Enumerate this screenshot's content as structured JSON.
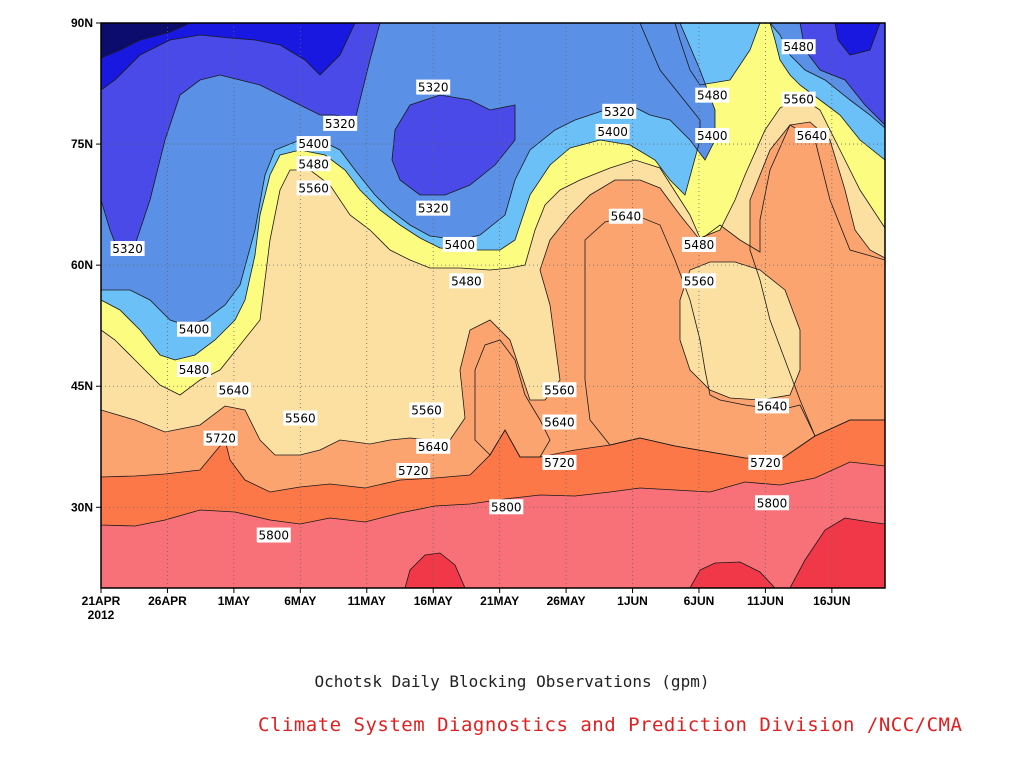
{
  "chart_data": {
    "type": "heatmap",
    "title": "Ochotsk Daily Blocking Observations (gpm)",
    "credit": "Climate System Diagnostics and Prediction Division /NCC/CMA",
    "x_tick_labels": [
      "21APR",
      "26APR",
      "1MAY",
      "6MAY",
      "11MAY",
      "16MAY",
      "21MAY",
      "26MAY",
      "1JUN",
      "6JUN",
      "11JUN",
      "16JUN"
    ],
    "x_start_year": "2012",
    "x_range_days": [
      0,
      59
    ],
    "y_tick_labels": [
      "30N",
      "45N",
      "60N",
      "75N",
      "90N"
    ],
    "y_tick_values": [
      30,
      45,
      60,
      75,
      90
    ],
    "ylim": [
      20,
      90
    ],
    "grid": "dotted",
    "contour_levels": [
      5240,
      5320,
      5400,
      5480,
      5560,
      5640,
      5720,
      5800,
      5880
    ],
    "fill_colors": [
      "#0c0c6e",
      "#1818e0",
      "#4a4ae8",
      "#5a90e6",
      "#6cc0f8",
      "#fcfc80",
      "#fce0a2",
      "#fca470",
      "#fc7848",
      "#f87078",
      "#f03848"
    ],
    "contour_labels": [
      {
        "text": "5320",
        "day": 2,
        "lat": 62
      },
      {
        "text": "5320",
        "day": 18,
        "lat": 77.5
      },
      {
        "text": "5320",
        "day": 25,
        "lat": 82
      },
      {
        "text": "5320",
        "day": 25,
        "lat": 67
      },
      {
        "text": "5320",
        "day": 39,
        "lat": 79
      },
      {
        "text": "5400",
        "day": 16,
        "lat": 75
      },
      {
        "text": "5400",
        "day": 7,
        "lat": 52
      },
      {
        "text": "5400",
        "day": 27,
        "lat": 62.5
      },
      {
        "text": "5400",
        "day": 38.5,
        "lat": 76.5
      },
      {
        "text": "5400",
        "day": 46,
        "lat": 76
      },
      {
        "text": "5480",
        "day": 16,
        "lat": 72.5
      },
      {
        "text": "5480",
        "day": 7,
        "lat": 47
      },
      {
        "text": "5480",
        "day": 27.5,
        "lat": 58
      },
      {
        "text": "5480",
        "day": 46,
        "lat": 81
      },
      {
        "text": "5480",
        "day": 45,
        "lat": 62.5
      },
      {
        "text": "5480",
        "day": 52.5,
        "lat": 87
      },
      {
        "text": "5560",
        "day": 16,
        "lat": 69.5
      },
      {
        "text": "5560",
        "day": 15,
        "lat": 41
      },
      {
        "text": "5560",
        "day": 24.5,
        "lat": 42
      },
      {
        "text": "5560",
        "day": 34.5,
        "lat": 44.5
      },
      {
        "text": "5560",
        "day": 45,
        "lat": 58
      },
      {
        "text": "5560",
        "day": 52.5,
        "lat": 80.5
      },
      {
        "text": "5640",
        "day": 10,
        "lat": 44.5
      },
      {
        "text": "5640",
        "day": 25,
        "lat": 37.5
      },
      {
        "text": "5640",
        "day": 34.5,
        "lat": 40.5
      },
      {
        "text": "5640",
        "day": 39.5,
        "lat": 66
      },
      {
        "text": "5640",
        "day": 50.5,
        "lat": 42.5
      },
      {
        "text": "5640",
        "day": 53.5,
        "lat": 76
      },
      {
        "text": "5720",
        "day": 9,
        "lat": 38.5
      },
      {
        "text": "5720",
        "day": 23.5,
        "lat": 34.5
      },
      {
        "text": "5720",
        "day": 34.5,
        "lat": 35.5
      },
      {
        "text": "5720",
        "day": 50,
        "lat": 35.5
      },
      {
        "text": "5800",
        "day": 13,
        "lat": 26.5
      },
      {
        "text": "5800",
        "day": 30.5,
        "lat": 30
      },
      {
        "text": "5800",
        "day": 50.5,
        "lat": 30.5
      }
    ]
  }
}
